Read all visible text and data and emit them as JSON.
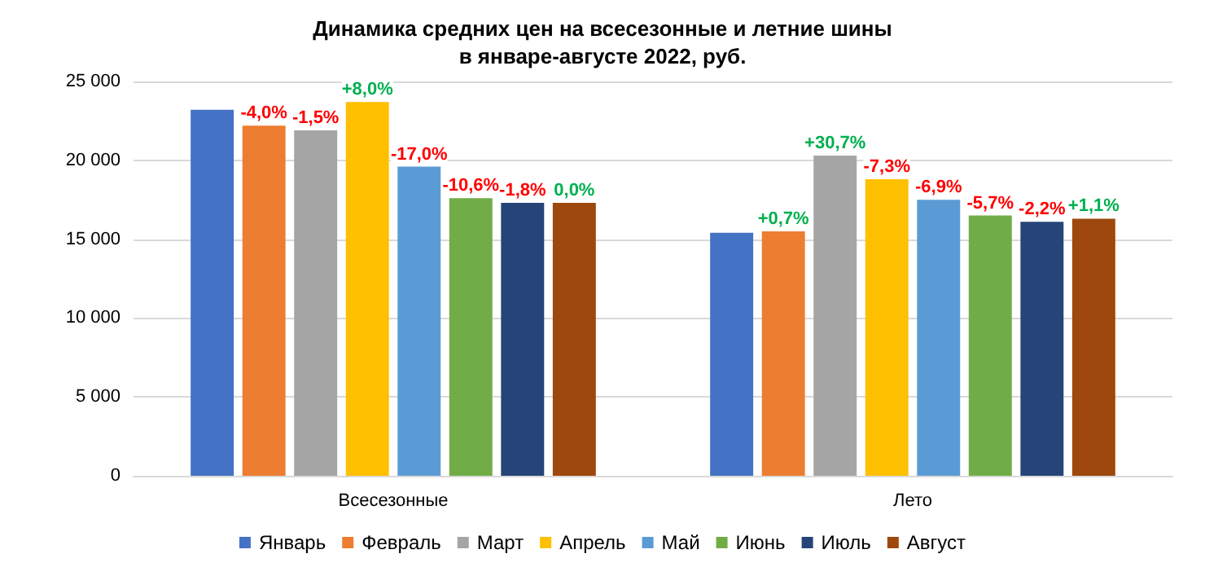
{
  "chart_data": {
    "type": "bar",
    "title": "Динамика средних цен на всесезонные и летние шины\nв январе-августе 2022, руб.",
    "categories": [
      "Всесезонные",
      "Лето"
    ],
    "series": [
      {
        "name": "Январь",
        "color": "#4472c4",
        "values": [
          23200,
          15400
        ]
      },
      {
        "name": "Февраль",
        "color": "#ed7d31",
        "values": [
          22200,
          15500
        ]
      },
      {
        "name": "Март",
        "color": "#a5a5a5",
        "values": [
          21900,
          20300
        ]
      },
      {
        "name": "Апрель",
        "color": "#ffc000",
        "values": [
          23700,
          18800
        ]
      },
      {
        "name": "Май",
        "color": "#5b9bd5",
        "values": [
          19600,
          17500
        ]
      },
      {
        "name": "Июнь",
        "color": "#70ad47",
        "values": [
          17600,
          16500
        ]
      },
      {
        "name": "Июль",
        "color": "#264478",
        "values": [
          17300,
          16100
        ]
      },
      {
        "name": "Август",
        "color": "#9e480e",
        "values": [
          17300,
          16300
        ]
      }
    ],
    "annotations": [
      "-4,0%",
      "-1,5%",
      "+8,0%",
      "-17,0%",
      "-10,6%",
      "-1,8%",
      "0,0%",
      "+0,7%",
      "+30,7%",
      "-7,3%",
      "-6,9%",
      "-5,7%",
      "-2,2%",
      "+1,1%"
    ],
    "ylim": [
      0,
      25000
    ],
    "yticks": [
      {
        "value": 0,
        "label": "0"
      },
      {
        "value": 5000,
        "label": "5 000"
      },
      {
        "value": 10000,
        "label": "10 000"
      },
      {
        "value": 15000,
        "label": "15 000"
      },
      {
        "value": 20000,
        "label": "20 000"
      },
      {
        "value": 25000,
        "label": "25 000"
      }
    ],
    "grid": "y",
    "legend": "bottom"
  }
}
